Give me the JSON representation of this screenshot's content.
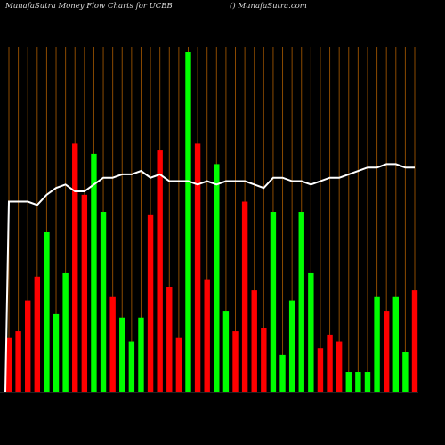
{
  "header": {
    "title": "MunafaSutra  Money Flow  Charts for UCBB",
    "watermark": "() MunafaSutra.com"
  },
  "colors": {
    "background": "#000000",
    "grid": "#8b4a00",
    "up": "#00ff00",
    "down": "#ff0000",
    "line": "#ffffff"
  },
  "chart_data": {
    "type": "bar",
    "title": "MunafaSutra  Money Flow  Charts for UCBB",
    "xlabel": "",
    "ylabel": "",
    "ylim": [
      0,
      100
    ],
    "grid": true,
    "values": [
      16,
      18,
      27,
      34,
      47,
      23,
      35,
      73,
      58,
      70,
      53,
      28,
      22,
      15,
      22,
      52,
      71,
      31,
      16,
      100,
      73,
      33,
      67,
      24,
      18,
      56,
      30,
      19,
      53,
      11,
      27,
      53,
      35,
      13,
      17,
      15,
      6,
      6,
      6,
      28,
      24,
      28,
      12,
      30
    ],
    "directions": [
      "down",
      "down",
      "down",
      "down",
      "up",
      "up",
      "up",
      "down",
      "down",
      "up",
      "up",
      "down",
      "up",
      "up",
      "up",
      "down",
      "down",
      "down",
      "down",
      "up",
      "down",
      "down",
      "up",
      "up",
      "down",
      "down",
      "down",
      "red",
      "up",
      "up",
      "up",
      "up",
      "up",
      "down",
      "down",
      "down",
      "up",
      "up",
      "up",
      "up",
      "down",
      "up",
      "up",
      "down"
    ],
    "money_flow_line": [
      56,
      56,
      56,
      55,
      58,
      60,
      61,
      59,
      59,
      61,
      63,
      63,
      64,
      64,
      65,
      63,
      64,
      62,
      62,
      62,
      61,
      62,
      61,
      62,
      62,
      62,
      61,
      60,
      63,
      63,
      62,
      62,
      61,
      62,
      63,
      63,
      64,
      65,
      66,
      66,
      67,
      67,
      66,
      66
    ]
  }
}
